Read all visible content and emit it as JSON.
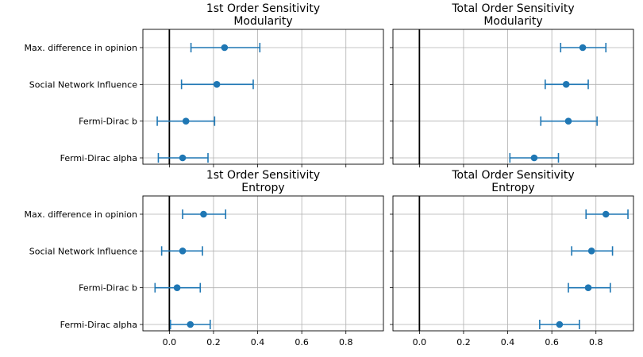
{
  "chart_data": [
    {
      "type": "errorbar",
      "title": "1st Order Sensitivity",
      "subtitle": "Modularity",
      "categories": [
        "Max. difference in opinion",
        "Social Network Influence",
        "Fermi-Dirac b",
        "Fermi-Dirac alpha"
      ],
      "values": [
        0.25,
        0.215,
        0.075,
        0.06
      ],
      "lower": [
        0.098,
        0.055,
        -0.055,
        -0.05
      ],
      "upper": [
        0.41,
        0.38,
        0.205,
        0.175
      ],
      "xlim": [
        -0.12,
        0.97
      ],
      "xticks": [
        "0.0",
        "0.2",
        "0.4",
        "0.6",
        "0.8"
      ],
      "show_yticklabels": true,
      "show_xticklabels": false,
      "grid": true,
      "color": "#1f77b4"
    },
    {
      "type": "errorbar",
      "title": "Total Order Sensitivity",
      "subtitle": "Modularity",
      "categories": [
        "Max. difference in opinion",
        "Social Network Influence",
        "Fermi-Dirac b",
        "Fermi-Dirac alpha"
      ],
      "values": [
        0.74,
        0.665,
        0.675,
        0.52
      ],
      "lower": [
        0.64,
        0.57,
        0.55,
        0.41
      ],
      "upper": [
        0.845,
        0.765,
        0.805,
        0.63
      ],
      "xlim": [
        -0.12,
        0.97
      ],
      "xticks": [
        "0.0",
        "0.2",
        "0.4",
        "0.6",
        "0.8"
      ],
      "show_yticklabels": false,
      "show_xticklabels": false,
      "grid": true,
      "color": "#1f77b4"
    },
    {
      "type": "errorbar",
      "title": "1st Order Sensitivity",
      "subtitle": "Entropy",
      "categories": [
        "Max. difference in opinion",
        "Social Network Influence",
        "Fermi-Dirac b",
        "Fermi-Dirac alpha"
      ],
      "values": [
        0.155,
        0.06,
        0.035,
        0.095
      ],
      "lower": [
        0.06,
        -0.035,
        -0.065,
        0.005
      ],
      "upper": [
        0.255,
        0.15,
        0.14,
        0.185
      ],
      "xlim": [
        -0.12,
        0.97
      ],
      "xticks": [
        "0.0",
        "0.2",
        "0.4",
        "0.6",
        "0.8"
      ],
      "show_yticklabels": true,
      "show_xticklabels": true,
      "grid": true,
      "color": "#1f77b4"
    },
    {
      "type": "errorbar",
      "title": "Total Order Sensitivity",
      "subtitle": "Entropy",
      "categories": [
        "Max. difference in opinion",
        "Social Network Influence",
        "Fermi-Dirac b",
        "Fermi-Dirac alpha"
      ],
      "values": [
        0.845,
        0.78,
        0.765,
        0.635
      ],
      "lower": [
        0.755,
        0.69,
        0.675,
        0.545
      ],
      "upper": [
        0.945,
        0.875,
        0.865,
        0.725
      ],
      "xlim": [
        -0.12,
        0.97
      ],
      "xticks": [
        "0.0",
        "0.2",
        "0.4",
        "0.6",
        "0.8"
      ],
      "show_yticklabels": false,
      "show_xticklabels": true,
      "grid": true,
      "color": "#1f77b4"
    }
  ]
}
